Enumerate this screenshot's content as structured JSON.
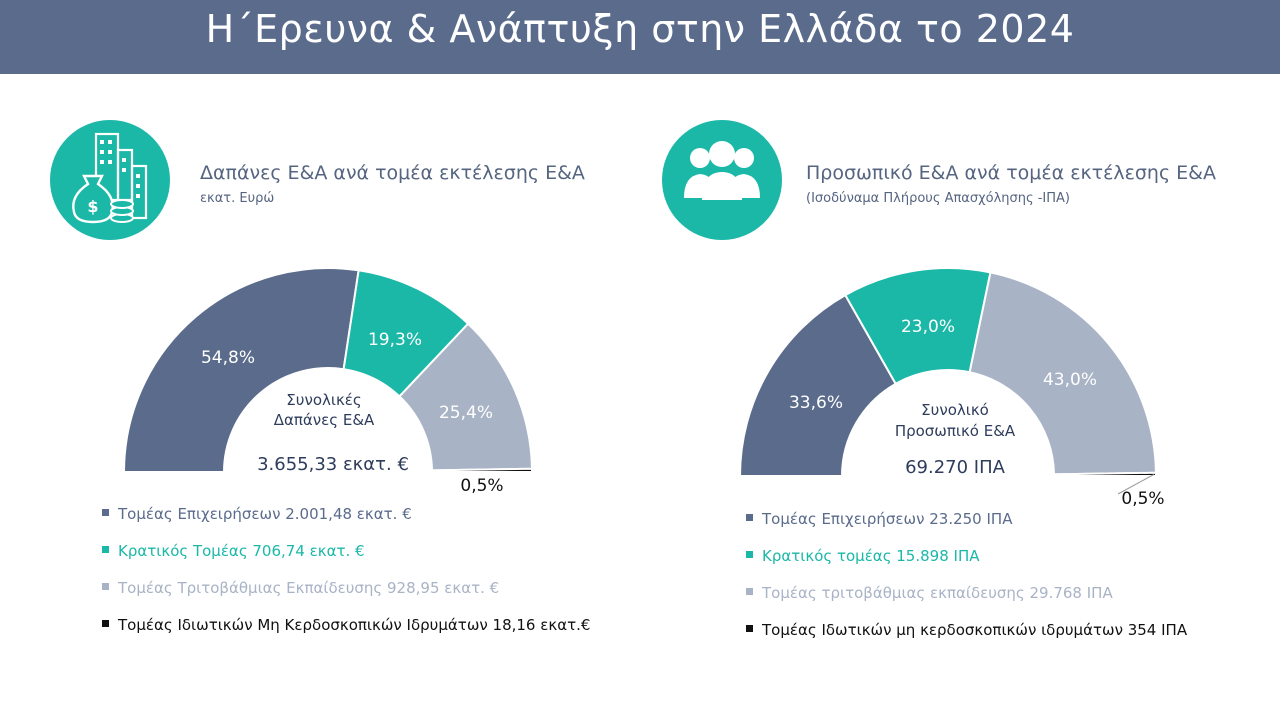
{
  "header": {
    "title": "Η΄Ερευνα & Ανάπτυξη στην Ελλάδα το 2024"
  },
  "colors": {
    "header_bg": "#5a6b8c",
    "business": "#5a6b8c",
    "government": "#1bb8a8",
    "higher_education": "#a9b3c6",
    "private_nonprofit": "#111111",
    "accent_text": "#556480"
  },
  "left_panel": {
    "icon": "money-bag-city-icon",
    "title": "Δαπάνες Ε&Α ανά τομέα εκτέλεσης Ε&Α",
    "subtitle": "εκατ. Ευρώ",
    "center_label_line1": "Συνολικές",
    "center_label_line2": "Δαπάνες Ε&Α",
    "center_total": "3.655,33 εκατ. €",
    "legend": [
      {
        "label": "Τομέας Επιχειρήσεων 2.001,48 εκατ. €",
        "color": "#5a6b8c"
      },
      {
        "label": "Κρατικός Τομέας 706,74 εκατ. €",
        "color": "#1bb8a8"
      },
      {
        "label": "Τομέας Τριτοβάθμιας Εκπαίδευσης 928,95 εκατ. €",
        "color": "#a9b3c6"
      },
      {
        "label": "Τομέας Ιδιωτικών Μη Κερδοσκοπικών Ιδρυμάτων 18,16 εκατ.€",
        "color": "#111111"
      }
    ]
  },
  "right_panel": {
    "icon": "people-group-icon",
    "title": "Προσωπικό Ε&Α ανά τομέα εκτέλεσης Ε&Α",
    "subtitle": "(Ισοδύναμα Πλήρους Απασχόλησης -ΙΠΑ)",
    "center_label_line1": "Συνολικό",
    "center_label_line2": "Προσωπικό Ε&Α",
    "center_total": "69.270 ΙΠΑ",
    "legend": [
      {
        "label": "Τομέας Επιχειρήσεων 23.250 ΙΠΑ",
        "color": "#5a6b8c"
      },
      {
        "label": "Κρατικός τομέας 15.898 ΙΠΑ",
        "color": "#1bb8a8"
      },
      {
        "label": "Τομέας τριτοβάθμιας εκπαίδευσης 29.768 ΙΠΑ",
        "color": "#a9b3c6"
      },
      {
        "label": "Τομέας Ιδωτικών μη κερδοσκοπικών ιδρυμάτων 354 ΙΠΑ",
        "color": "#111111"
      }
    ]
  },
  "chart_data": [
    {
      "type": "pie",
      "title": "Δαπάνες Ε&Α ανά τομέα εκτέλεσης Ε&Α",
      "categories": [
        "Τομέας Επιχειρήσεων",
        "Κρατικός Τομέας",
        "Τομέας Τριτοβάθμιας Εκπαίδευσης",
        "Τομέας Ιδιωτικών Μη Κερδοσκοπικών Ιδρυμάτων"
      ],
      "values": [
        54.8,
        19.3,
        25.4,
        0.5
      ],
      "value_labels": [
        "54,8%",
        "19,3%",
        "25,4%",
        "0,5%"
      ],
      "absolute_values": [
        2001.48,
        706.74,
        928.95,
        18.16
      ],
      "colors": [
        "#5a6b8c",
        "#1bb8a8",
        "#a9b3c6",
        "#111111"
      ]
    },
    {
      "type": "pie",
      "title": "Προσωπικό Ε&Α ανά τομέα εκτέλεσης Ε&Α",
      "categories": [
        "Τομέας Επιχειρήσεων",
        "Κρατικός τομέας",
        "Τομέας τριτοβάθμιας εκπαίδευσης",
        "Τομέας Ιδωτικών μη κερδοσκοπικών ιδρυμάτων"
      ],
      "values": [
        33.6,
        23.0,
        43.0,
        0.5
      ],
      "value_labels": [
        "33,6%",
        "23,0%",
        "43,0%",
        "0,5%"
      ],
      "absolute_values": [
        23250,
        15898,
        29768,
        354
      ],
      "colors": [
        "#5a6b8c",
        "#1bb8a8",
        "#a9b3c6",
        "#111111"
      ]
    }
  ]
}
